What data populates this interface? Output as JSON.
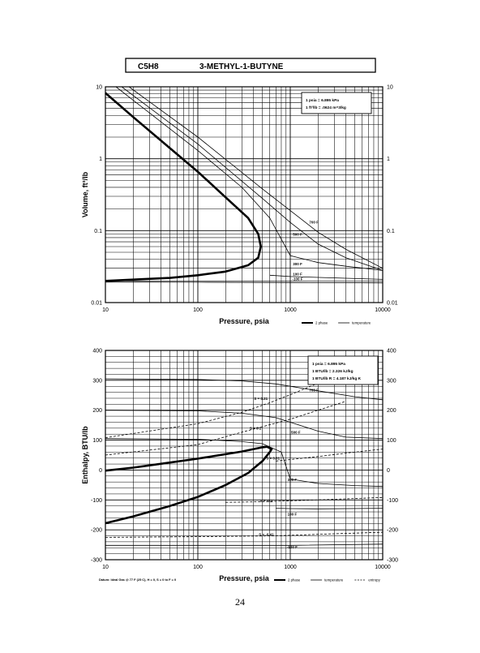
{
  "header": {
    "formula": "C5H8",
    "compound": "3-METHYL-1-BUTYNE"
  },
  "page_number": "24",
  "chart_data": [
    {
      "type": "line",
      "xscale": "log",
      "yscale": "log",
      "xlim": [
        10,
        10000
      ],
      "ylim": [
        0.01,
        10
      ],
      "xlabel": "Pressure,  psia",
      "ylabel": "Volume, ft^3/lb",
      "x_tick_labels": [
        "10",
        "100",
        "1000",
        "10000"
      ],
      "y_tick_labels": [
        "10",
        "1",
        "0.1",
        "0.01"
      ],
      "y_ticks": [
        10,
        1,
        0.1,
        0.01
      ],
      "grid": true,
      "conversions": [
        "1 psia  =  6.895 kPa",
        "1 ft^3/lb  =  .0624 m^3/kg"
      ],
      "legend": [
        {
          "label": "2 phase",
          "style": "thick"
        },
        {
          "label": "temperature",
          "style": "thin"
        }
      ],
      "dome": {
        "name": "2 phase",
        "points": [
          [
            10,
            8.2
          ],
          [
            20,
            3.8
          ],
          [
            50,
            1.4
          ],
          [
            100,
            0.66
          ],
          [
            200,
            0.29
          ],
          [
            350,
            0.15
          ],
          [
            450,
            0.09
          ],
          [
            480,
            0.06
          ],
          [
            450,
            0.042
          ],
          [
            350,
            0.033
          ],
          [
            200,
            0.027
          ],
          [
            100,
            0.024
          ],
          [
            50,
            0.022
          ],
          [
            10,
            0.02
          ]
        ]
      },
      "series": [
        {
          "name": "700 F",
          "points": [
            [
              18,
              10
            ],
            [
              100,
              2.0
            ],
            [
              500,
              0.38
            ],
            [
              1000,
              0.19
            ],
            [
              2000,
              0.095
            ],
            [
              4000,
              0.055
            ],
            [
              10000,
              0.03
            ]
          ]
        },
        {
          "name": "500 F",
          "points": [
            [
              15,
              10
            ],
            [
              100,
              1.6
            ],
            [
              500,
              0.28
            ],
            [
              1000,
              0.13
            ],
            [
              2000,
              0.065
            ],
            [
              4000,
              0.042
            ],
            [
              10000,
              0.028
            ]
          ]
        },
        {
          "name": "300 F",
          "points": [
            [
              13,
              10
            ],
            [
              100,
              1.3
            ],
            [
              300,
              0.4
            ],
            [
              600,
              0.15
            ],
            [
              1000,
              0.045
            ],
            [
              2000,
              0.036
            ],
            [
              4000,
              0.032
            ],
            [
              10000,
              0.028
            ]
          ]
        },
        {
          "name": "100 F",
          "points": [
            [
              600,
              0.024
            ],
            [
              1000,
              0.023
            ],
            [
              10000,
              0.021
            ]
          ]
        },
        {
          "name": "-100 F",
          "points": [
            [
              10,
              0.0193
            ],
            [
              100,
              0.0192
            ],
            [
              1000,
              0.019
            ],
            [
              10000,
              0.0188
            ]
          ]
        }
      ],
      "isotherm_labels": [
        {
          "text": "700 F",
          "x": 1800,
          "y": 0.125
        },
        {
          "text": "500 F",
          "x": 1200,
          "y": 0.085
        },
        {
          "text": "300 F",
          "x": 1200,
          "y": 0.033
        },
        {
          "text": "100 F",
          "x": 1200,
          "y": 0.024
        },
        {
          "text": "-100 F",
          "x": 1200,
          "y": 0.0205
        }
      ]
    },
    {
      "type": "line",
      "xscale": "log",
      "xlim": [
        10,
        10000
      ],
      "ylim": [
        -300,
        400
      ],
      "xlabel": "Pressure,  psia",
      "ylabel": "Enthalpy, BTU/lb",
      "x_tick_labels": [
        "10",
        "100",
        "1000",
        "10000"
      ],
      "y_ticks": [
        400,
        300,
        200,
        100,
        0,
        -100,
        -200,
        -300
      ],
      "y_tick_labels": [
        "400",
        "300",
        "200",
        "100",
        "0",
        "-100",
        "-200",
        "-300"
      ],
      "grid": true,
      "conversions": [
        "1 psia  =  6.895 kPa",
        "1 BTU/lb  =  2.326 kJ/kg",
        "1 BTU/lb R  =  4.187 kJ/kg K"
      ],
      "datum_note": "Datum: Ideal Gas @ 77 F (25 C),  H = 0,  S = 0 to F = 0",
      "legend": [
        {
          "label": "2 phase",
          "style": "thick"
        },
        {
          "label": "temperature",
          "style": "thin"
        },
        {
          "label": "entropy",
          "style": "dashed"
        }
      ],
      "dome": {
        "name": "2 phase",
        "points": [
          [
            10,
            -178
          ],
          [
            20,
            -155
          ],
          [
            50,
            -120
          ],
          [
            100,
            -90
          ],
          [
            200,
            -50
          ],
          [
            350,
            -10
          ],
          [
            500,
            30
          ],
          [
            600,
            60
          ],
          [
            630,
            70
          ],
          [
            560,
            78
          ],
          [
            500,
            76
          ],
          [
            300,
            62
          ],
          [
            100,
            38
          ],
          [
            50,
            25
          ],
          [
            20,
            8
          ],
          [
            10,
            -2
          ]
        ]
      },
      "series": [
        {
          "name": "700 F",
          "points": [
            [
              10,
              305
            ],
            [
              100,
              303
            ],
            [
              300,
              298
            ],
            [
              700,
              288
            ],
            [
              1000,
              280
            ],
            [
              2000,
              265
            ],
            [
              5000,
              245
            ],
            [
              10000,
              235
            ]
          ]
        },
        {
          "name": "500 F",
          "points": [
            [
              10,
              200
            ],
            [
              100,
              198
            ],
            [
              300,
              190
            ],
            [
              700,
              175
            ],
            [
              1000,
              160
            ],
            [
              2000,
              130
            ],
            [
              4000,
              110
            ],
            [
              10000,
              105
            ]
          ]
        },
        {
          "name": "300 F",
          "points": [
            [
              10,
              105
            ],
            [
              100,
              103
            ],
            [
              300,
              95
            ],
            [
              500,
              88
            ],
            [
              800,
              60
            ],
            [
              1000,
              -30
            ],
            [
              2000,
              -45
            ],
            [
              5000,
              -52
            ],
            [
              10000,
              -55
            ]
          ]
        },
        {
          "name": "100 F",
          "points": [
            [
              700,
              -128
            ],
            [
              1000,
              -129
            ],
            [
              2000,
              -130
            ],
            [
              10000,
              -128
            ]
          ]
        },
        {
          "name": "-100 F",
          "points": [
            [
              10,
              -252
            ],
            [
              1000,
              -252
            ],
            [
              10000,
              -248
            ]
          ]
        }
      ],
      "entropy_lines": [
        {
          "name": "S = 0.21",
          "points": [
            [
              10,
              108
            ],
            [
              100,
              155
            ],
            [
              300,
              193
            ],
            [
              600,
              225
            ],
            [
              1000,
              252
            ],
            [
              2000,
              290
            ],
            [
              4000,
              325
            ]
          ]
        },
        {
          "name": "S = 0.1",
          "points": [
            [
              10,
              50
            ],
            [
              100,
              85
            ],
            [
              250,
              120
            ],
            [
              500,
              145
            ],
            [
              1000,
              170
            ],
            [
              2000,
              200
            ],
            [
              4000,
              230
            ]
          ]
        },
        {
          "name": "S = 0.01",
          "points": [
            [
              700,
              30
            ],
            [
              1000,
              35
            ],
            [
              2000,
              45
            ],
            [
              5000,
              60
            ],
            [
              10000,
              70
            ]
          ]
        },
        {
          "name": "S = -0.2",
          "points": [
            [
              200,
              -108
            ],
            [
              500,
              -106
            ],
            [
              1000,
              -103
            ],
            [
              3000,
              -98
            ],
            [
              10000,
              -92
            ]
          ]
        },
        {
          "name": "S = -0.41",
          "points": [
            [
              10,
              -225
            ],
            [
              100,
              -223
            ],
            [
              700,
              -220
            ],
            [
              2000,
              -215
            ],
            [
              10000,
              -208
            ]
          ]
        }
      ],
      "line_labels": [
        {
          "text": "S = 0.21",
          "x": 480,
          "y": 235
        },
        {
          "text": "700 F",
          "x": 1800,
          "y": 263
        },
        {
          "text": "S = 0.1",
          "x": 420,
          "y": 135
        },
        {
          "text": "500 F",
          "x": 1150,
          "y": 122
        },
        {
          "text": "S = 0.01",
          "x": 650,
          "y": 35
        },
        {
          "text": "300 F",
          "x": 1050,
          "y": -37
        },
        {
          "text": "S = -0.2",
          "x": 550,
          "y": -108
        },
        {
          "text": "100 F",
          "x": 1050,
          "y": -152
        },
        {
          "text": "S = -0.41",
          "x": 550,
          "y": -220
        },
        {
          "text": "-100 F",
          "x": 1050,
          "y": -262
        }
      ]
    }
  ]
}
